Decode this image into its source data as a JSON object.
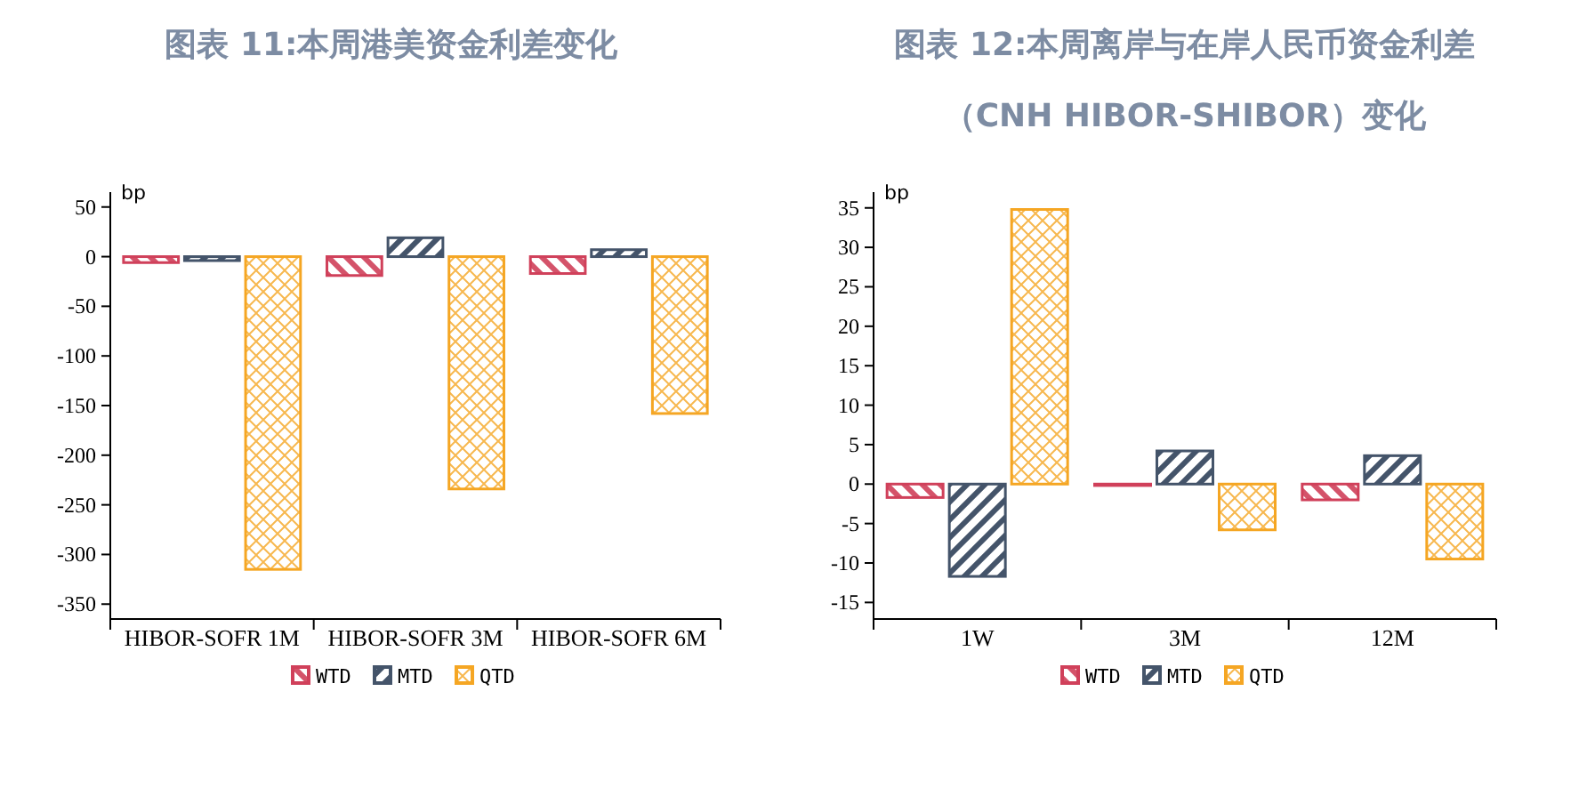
{
  "chart_data": [
    {
      "type": "bar",
      "title": "图表 11:本周港美资金利差变化",
      "ylabel": "bp",
      "categories": [
        "HIBOR-SOFR 1M",
        "HIBOR-SOFR 3M",
        "HIBOR-SOFR 6M"
      ],
      "series": [
        {
          "name": "WTD",
          "color": "#d0405a",
          "values": [
            -6,
            -19,
            -17
          ]
        },
        {
          "name": "MTD",
          "color": "#44546a",
          "values": [
            -4,
            19,
            7
          ]
        },
        {
          "name": "QTD",
          "color": "#f5a623",
          "values": [
            -315,
            -234,
            -158
          ]
        }
      ],
      "ylim": [
        -365,
        65
      ],
      "yticks": [
        -350,
        -300,
        -250,
        -200,
        -150,
        -100,
        -50,
        0,
        50
      ],
      "grid": false,
      "legend": "bottom"
    },
    {
      "type": "bar",
      "title": "图表 12:本周离岸与在岸人民币资金利差（CNH HIBOR-SHIBOR）变化",
      "ylabel": "bp",
      "categories": [
        "1W",
        "3M",
        "12M"
      ],
      "series": [
        {
          "name": "WTD",
          "color": "#d0405a",
          "values": [
            -1.7,
            -0.1,
            -2
          ]
        },
        {
          "name": "MTD",
          "color": "#44546a",
          "values": [
            -11.7,
            4.2,
            3.6
          ]
        },
        {
          "name": "QTD",
          "color": "#f5a623",
          "values": [
            34.8,
            -5.8,
            -9.5
          ]
        }
      ],
      "ylim": [
        -17.1,
        37
      ],
      "yticks": [
        -15,
        -10,
        -5,
        0,
        5,
        10,
        15,
        20,
        25,
        30,
        35
      ],
      "grid": false,
      "legend": "bottom"
    }
  ]
}
